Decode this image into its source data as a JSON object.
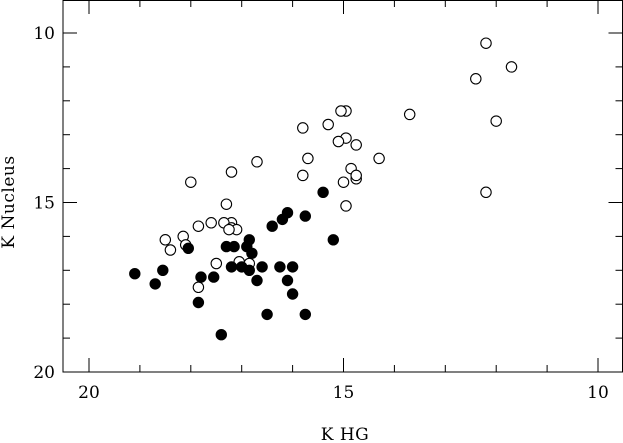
{
  "chart_data": {
    "type": "scatter",
    "title": "",
    "xlabel": "K HG",
    "ylabel": "K Nucleus",
    "xlim": [
      20.6,
      9.5
    ],
    "ylim": [
      20,
      9
    ],
    "x_reversed": true,
    "y_reversed": true,
    "grid": false,
    "xticks": {
      "major": [
        20,
        15,
        10
      ],
      "labels": [
        "20",
        "15",
        "10"
      ],
      "minor_step": 1
    },
    "yticks": {
      "major": [
        10,
        15,
        20
      ],
      "labels": [
        "10",
        "15",
        "20"
      ],
      "minor_step": 1
    },
    "series": [
      {
        "marker": "open-circle",
        "points": [
          [
            12.2,
            10.3
          ],
          [
            11.7,
            11.0
          ],
          [
            12.4,
            11.35
          ],
          [
            12.0,
            12.6
          ],
          [
            12.2,
            14.7
          ],
          [
            13.7,
            12.4
          ],
          [
            14.95,
            12.3
          ],
          [
            15.05,
            12.3
          ],
          [
            15.3,
            12.7
          ],
          [
            15.8,
            12.8
          ],
          [
            14.95,
            13.1
          ],
          [
            14.75,
            13.3
          ],
          [
            15.1,
            13.2
          ],
          [
            15.7,
            13.7
          ],
          [
            14.3,
            13.7
          ],
          [
            14.85,
            14.0
          ],
          [
            14.75,
            14.3
          ],
          [
            14.75,
            14.2
          ],
          [
            15.0,
            14.4
          ],
          [
            15.8,
            14.2
          ],
          [
            16.7,
            13.8
          ],
          [
            17.2,
            14.1
          ],
          [
            18.0,
            14.4
          ],
          [
            14.95,
            15.1
          ],
          [
            17.3,
            15.05
          ],
          [
            17.2,
            15.6
          ],
          [
            17.35,
            15.6
          ],
          [
            17.6,
            15.6
          ],
          [
            17.2,
            15.75
          ],
          [
            17.1,
            15.8
          ],
          [
            17.25,
            15.8
          ],
          [
            17.85,
            15.7
          ],
          [
            18.15,
            16.0
          ],
          [
            18.5,
            16.1
          ],
          [
            18.1,
            16.25
          ],
          [
            18.4,
            16.4
          ],
          [
            17.5,
            16.8
          ],
          [
            17.05,
            16.75
          ],
          [
            16.85,
            16.8
          ],
          [
            17.85,
            17.5
          ]
        ]
      },
      {
        "marker": "filled-circle",
        "points": [
          [
            15.4,
            14.7
          ],
          [
            15.75,
            15.4
          ],
          [
            16.1,
            15.3
          ],
          [
            16.2,
            15.5
          ],
          [
            16.4,
            15.7
          ],
          [
            15.2,
            16.1
          ],
          [
            16.85,
            16.1
          ],
          [
            16.9,
            16.3
          ],
          [
            17.3,
            16.3
          ],
          [
            17.15,
            16.3
          ],
          [
            18.05,
            16.35
          ],
          [
            16.8,
            16.5
          ],
          [
            16.0,
            16.9
          ],
          [
            16.25,
            16.9
          ],
          [
            17.0,
            16.9
          ],
          [
            17.2,
            16.9
          ],
          [
            16.85,
            17.0
          ],
          [
            16.6,
            16.9
          ],
          [
            18.55,
            17.0
          ],
          [
            19.1,
            17.1
          ],
          [
            17.8,
            17.2
          ],
          [
            17.55,
            17.2
          ],
          [
            16.1,
            17.3
          ],
          [
            16.7,
            17.3
          ],
          [
            18.7,
            17.4
          ],
          [
            16.0,
            17.7
          ],
          [
            17.85,
            17.95
          ],
          [
            16.5,
            18.3
          ],
          [
            15.75,
            18.3
          ],
          [
            17.4,
            18.9
          ]
        ]
      }
    ]
  }
}
